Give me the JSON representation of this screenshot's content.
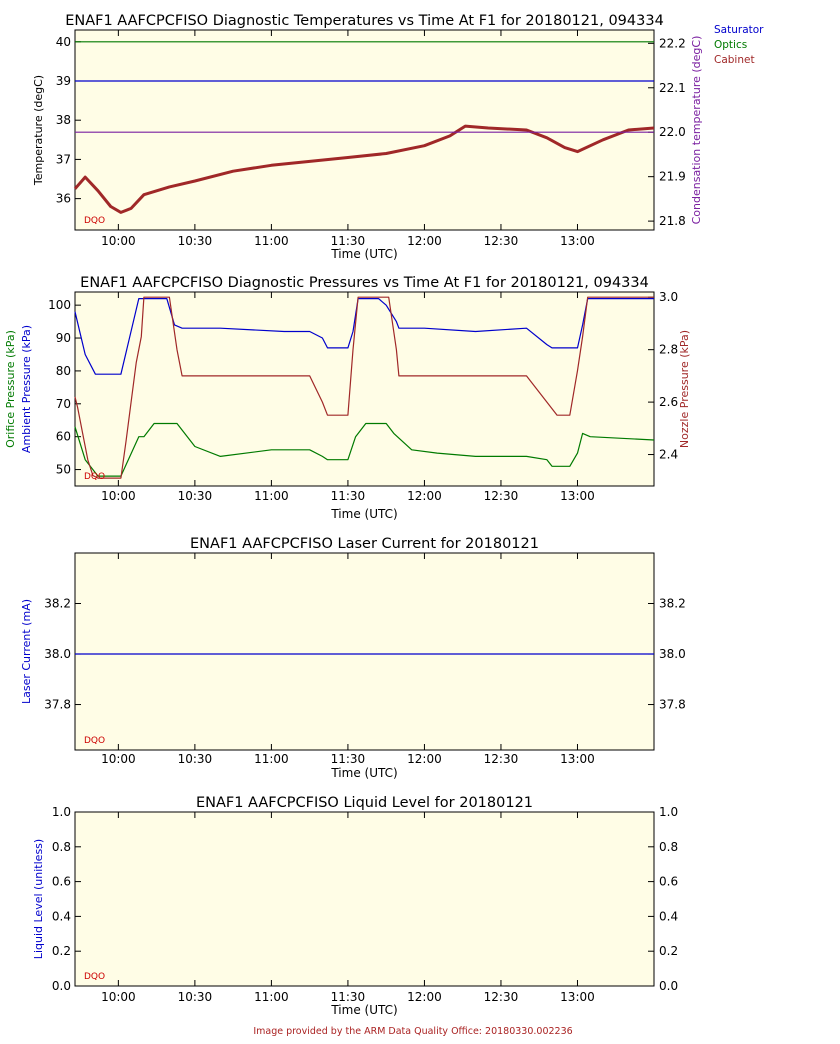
{
  "footer": {
    "credit": "Image provided by the ARM Data Quality Office: 20180330.002236"
  },
  "colors": {
    "panel_bg": "#fffde6",
    "saturator": "#0000cc",
    "optics": "#007a00",
    "cabinet": "#a02828",
    "purple": "#7a1fa0"
  },
  "chart_data": [
    {
      "type": "line",
      "title": "ENAF1 AAFCPCFISO Diagnostic Temperatures vs Time At F1 for 20180121, 094334",
      "xlabel": "Time (UTC)",
      "ylabel": "Temperature (degC)",
      "y2label": "Condensation temperature (degC)",
      "x_ticks": [
        "10:00",
        "10:30",
        "11:00",
        "11:30",
        "12:00",
        "12:30",
        "13:00"
      ],
      "xlim": [
        "09:43",
        "13:30"
      ],
      "ylim": [
        35.2,
        40.3
      ],
      "y_ticks": [
        "36",
        "37",
        "38",
        "39",
        "40"
      ],
      "y2lim": [
        21.78,
        22.23
      ],
      "y2_ticks": [
        "21.8",
        "21.9",
        "22.0",
        "22.1",
        "22.2"
      ],
      "badge": "DQO",
      "legend": [
        "Saturator",
        "Optics",
        "Cabinet"
      ],
      "series": [
        {
          "name": "Saturator",
          "x": [
            "09:43",
            "13:30"
          ],
          "values": [
            39.0,
            39.0
          ]
        },
        {
          "name": "Optics",
          "x": [
            "09:43",
            "13:30"
          ],
          "values": [
            40.0,
            40.0
          ]
        },
        {
          "name": "Cabinet",
          "x": [
            "09:43",
            "09:47",
            "09:52",
            "09:57",
            "10:01",
            "10:05",
            "10:10",
            "10:20",
            "10:30",
            "10:45",
            "11:00",
            "11:15",
            "11:30",
            "11:45",
            "12:00",
            "12:10",
            "12:16",
            "12:25",
            "12:40",
            "12:48",
            "12:55",
            "13:00",
            "13:10",
            "13:20",
            "13:30"
          ],
          "values": [
            36.25,
            36.55,
            36.2,
            35.8,
            35.65,
            35.75,
            36.1,
            36.3,
            36.45,
            36.7,
            36.85,
            36.95,
            37.05,
            37.15,
            37.35,
            37.6,
            37.85,
            37.8,
            37.75,
            37.55,
            37.3,
            37.2,
            37.5,
            37.75,
            37.8
          ]
        },
        {
          "name": "Condensation temperature",
          "axis": "right",
          "x": [
            "09:43",
            "13:30"
          ],
          "values": [
            22.0,
            22.0
          ]
        }
      ]
    },
    {
      "type": "line",
      "title": "ENAF1 AAFCPCFISO Diagnostic Pressures vs Time At F1 for 20180121, 094334",
      "xlabel": "Time (UTC)",
      "ylabel": "Ambient Pressure (kPa)",
      "ylabel2": "Orifice Pressure (kPa)",
      "y2label": "Nozzle Pressure (kPa)",
      "x_ticks": [
        "10:00",
        "10:30",
        "11:00",
        "11:30",
        "12:00",
        "12:30",
        "13:00"
      ],
      "xlim": [
        "09:43",
        "13:30"
      ],
      "ylim": [
        45,
        104
      ],
      "y_ticks": [
        "50",
        "60",
        "70",
        "80",
        "90",
        "100"
      ],
      "y2lim": [
        2.28,
        3.02
      ],
      "y2_ticks": [
        "2.4",
        "2.6",
        "2.8",
        "3.0"
      ],
      "badge": "DQO",
      "series": [
        {
          "name": "Ambient Pressure",
          "x": [
            "09:43",
            "09:47",
            "09:51",
            "10:01",
            "10:08",
            "10:10",
            "10:19",
            "10:22",
            "10:25",
            "10:40",
            "11:05",
            "11:15",
            "11:20",
            "11:22",
            "11:30",
            "11:32",
            "11:34",
            "11:42",
            "11:45",
            "11:49",
            "11:50",
            "12:00",
            "12:20",
            "12:40",
            "12:48",
            "12:50",
            "13:00",
            "13:02",
            "13:04",
            "13:30"
          ],
          "values": [
            98,
            85,
            79,
            79,
            102,
            102,
            102,
            94,
            93,
            93,
            92,
            92,
            90,
            87,
            87,
            92,
            102,
            102,
            100,
            95,
            93,
            93,
            92,
            93,
            88,
            87,
            87,
            94,
            102,
            102
          ]
        },
        {
          "name": "Orifice Pressure",
          "x": [
            "09:43",
            "09:47",
            "09:52",
            "10:01",
            "10:08",
            "10:10",
            "10:14",
            "10:20",
            "10:23",
            "10:30",
            "10:40",
            "11:00",
            "11:15",
            "11:20",
            "11:22",
            "11:30",
            "11:33",
            "11:37",
            "11:45",
            "11:48",
            "11:55",
            "12:05",
            "12:20",
            "12:40",
            "12:48",
            "12:50",
            "12:57",
            "13:00",
            "13:02",
            "13:05",
            "13:30"
          ],
          "values": [
            63,
            53,
            48,
            48,
            60,
            60,
            64,
            64,
            64,
            57,
            54,
            56,
            56,
            54,
            53,
            53,
            60,
            64,
            64,
            61,
            56,
            55,
            54,
            54,
            53,
            51,
            51,
            55,
            61,
            60,
            59
          ]
        },
        {
          "name": "Nozzle Pressure",
          "axis": "right",
          "x": [
            "09:43",
            "09:44",
            "09:46",
            "09:48",
            "09:50",
            "09:52",
            "10:01",
            "10:03",
            "10:05",
            "10:07",
            "10:09",
            "10:10",
            "10:13",
            "10:20",
            "10:23",
            "10:25",
            "11:05",
            "11:15",
            "11:20",
            "11:22",
            "11:30",
            "11:32",
            "11:34",
            "11:46",
            "11:49",
            "11:50",
            "12:00",
            "12:20",
            "12:40",
            "12:48",
            "12:52",
            "12:57",
            "13:00",
            "13:02",
            "13:04",
            "13:30"
          ],
          "values": [
            2.62,
            2.58,
            2.48,
            2.38,
            2.32,
            2.31,
            2.31,
            2.45,
            2.6,
            2.75,
            2.85,
            3.0,
            3.0,
            3.0,
            2.8,
            2.7,
            2.7,
            2.7,
            2.6,
            2.55,
            2.55,
            2.8,
            3.0,
            3.0,
            2.8,
            2.7,
            2.7,
            2.7,
            2.7,
            2.6,
            2.55,
            2.55,
            2.72,
            2.85,
            3.0,
            3.0
          ]
        }
      ]
    },
    {
      "type": "line",
      "title": "ENAF1 AAFCPCFISO Laser Current for 20180121",
      "xlabel": "Time (UTC)",
      "ylabel": "Laser Current (mA)",
      "x_ticks": [
        "10:00",
        "10:30",
        "11:00",
        "11:30",
        "12:00",
        "12:30",
        "13:00"
      ],
      "xlim": [
        "09:43",
        "13:30"
      ],
      "ylim": [
        37.62,
        38.4
      ],
      "y_ticks": [
        "37.8",
        "38.0",
        "38.2"
      ],
      "y2_ticks": [
        "37.8",
        "38.0",
        "38.2"
      ],
      "badge": "DQO",
      "series": [
        {
          "name": "Laser Current",
          "x": [
            "09:43",
            "13:30"
          ],
          "values": [
            38.0,
            38.0
          ]
        }
      ]
    },
    {
      "type": "line",
      "title": "ENAF1 AAFCPCFISO Liquid Level for 20180121",
      "xlabel": "Time (UTC)",
      "ylabel": "Liquid Level (unitless)",
      "x_ticks": [
        "10:00",
        "10:30",
        "11:00",
        "11:30",
        "12:00",
        "12:30",
        "13:00"
      ],
      "xlim": [
        "09:43",
        "13:30"
      ],
      "ylim": [
        0.0,
        1.0
      ],
      "y_ticks": [
        "0.0",
        "0.2",
        "0.4",
        "0.6",
        "0.8",
        "1.0"
      ],
      "y2_ticks": [
        "0.0",
        "0.2",
        "0.4",
        "0.6",
        "0.8",
        "1.0"
      ],
      "badge": "DQO",
      "series": []
    }
  ]
}
